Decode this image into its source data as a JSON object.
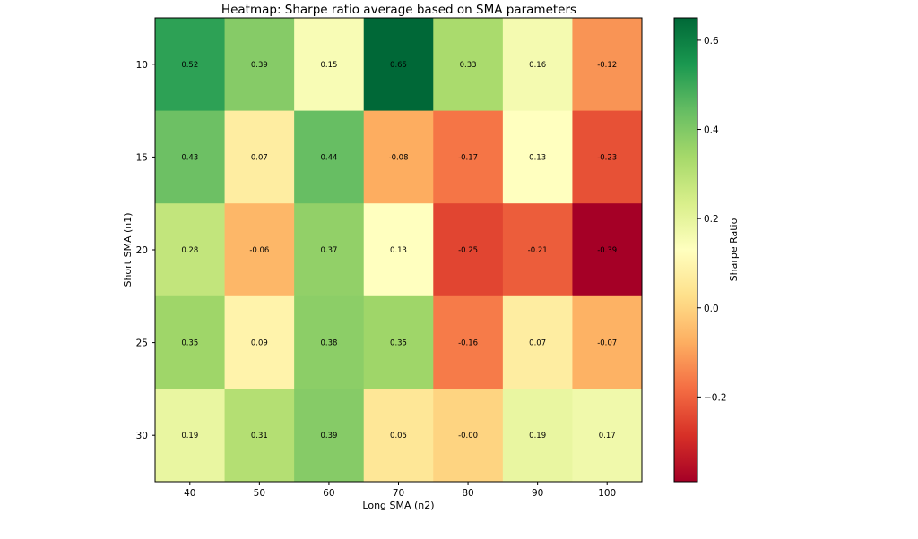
{
  "chart_data": {
    "type": "heatmap",
    "title": "Heatmap: Sharpe ratio average based on SMA parameters",
    "xlabel": "Long SMA (n2)",
    "ylabel": "Short SMA (n1)",
    "x_categories": [
      "40",
      "50",
      "60",
      "70",
      "80",
      "90",
      "100"
    ],
    "y_categories": [
      "10",
      "15",
      "20",
      "25",
      "30"
    ],
    "values": [
      [
        0.52,
        0.39,
        0.15,
        0.65,
        0.33,
        0.16,
        -0.12
      ],
      [
        0.43,
        0.07,
        0.44,
        -0.08,
        -0.17,
        0.13,
        -0.23
      ],
      [
        0.28,
        -0.06,
        0.37,
        0.13,
        -0.25,
        -0.21,
        -0.39
      ],
      [
        0.35,
        0.09,
        0.38,
        0.35,
        -0.16,
        0.07,
        -0.07
      ],
      [
        0.19,
        0.31,
        0.39,
        0.05,
        -0.0,
        0.19,
        0.17
      ]
    ],
    "labels": [
      [
        "0.52",
        "0.39",
        "0.15",
        "0.65",
        "0.33",
        "0.16",
        "-0.12"
      ],
      [
        "0.43",
        "0.07",
        "0.44",
        "-0.08",
        "-0.17",
        "0.13",
        "-0.23"
      ],
      [
        "0.28",
        "-0.06",
        "0.37",
        "0.13",
        "-0.25",
        "-0.21",
        "-0.39"
      ],
      [
        "0.35",
        "0.09",
        "0.38",
        "0.35",
        "-0.16",
        "0.07",
        "-0.07"
      ],
      [
        "0.19",
        "0.31",
        "0.39",
        "0.05",
        "-0.00",
        "0.19",
        "0.17"
      ]
    ],
    "colormap": "RdYlGn",
    "vmin": -0.39,
    "vmax": 0.65,
    "colorbar": {
      "label": "Sharpe Ratio",
      "ticks": [
        0.6,
        0.4,
        0.2,
        0.0,
        -0.2
      ],
      "tick_labels": [
        "0.6",
        "0.4",
        "0.2",
        "0.0",
        "−0.2"
      ],
      "stops": [
        "#a50026",
        "#d73027",
        "#f46d43",
        "#fdae61",
        "#fee08b",
        "#ffffbf",
        "#d9ef8b",
        "#a6d96a",
        "#66bd63",
        "#1a9850",
        "#006837"
      ]
    }
  }
}
